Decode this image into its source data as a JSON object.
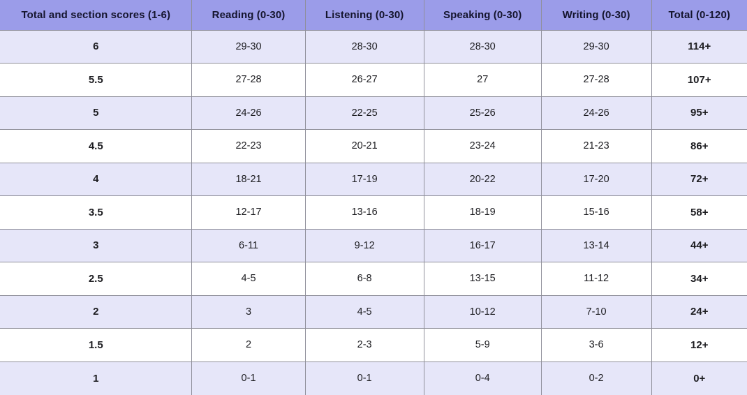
{
  "colors": {
    "header_bg": "#9b9ce9",
    "row_alt_bg": "#e6e6f9",
    "row_bg": "#ffffff",
    "border": "#8f8f9a",
    "header_text": "#15152e",
    "body_text": "#1d1d21"
  },
  "chart_data": {
    "type": "table",
    "columns": [
      "Total and section scores (1-6)",
      "Reading (0-30)",
      "Listening (0-30)",
      "Speaking (0-30)",
      "Writing (0-30)",
      "Total (0-120)"
    ],
    "rows": [
      [
        "6",
        "29-30",
        "28-30",
        "28-30",
        "29-30",
        "114+"
      ],
      [
        "5.5",
        "27-28",
        "26-27",
        "27",
        "27-28",
        "107+"
      ],
      [
        "5",
        "24-26",
        "22-25",
        "25-26",
        "24-26",
        "95+"
      ],
      [
        "4.5",
        "22-23",
        "20-21",
        "23-24",
        "21-23",
        "86+"
      ],
      [
        "4",
        "18-21",
        "17-19",
        "20-22",
        "17-20",
        "72+"
      ],
      [
        "3.5",
        "12-17",
        "13-16",
        "18-19",
        "15-16",
        "58+"
      ],
      [
        "3",
        "6-11",
        "9-12",
        "16-17",
        "13-14",
        "44+"
      ],
      [
        "2.5",
        "4-5",
        "6-8",
        "13-15",
        "11-12",
        "34+"
      ],
      [
        "2",
        "3",
        "4-5",
        "10-12",
        "7-10",
        "24+"
      ],
      [
        "1.5",
        "2",
        "2-3",
        "5-9",
        "3-6",
        "12+"
      ],
      [
        "1",
        "0-1",
        "0-1",
        "0-4",
        "0-2",
        "0+"
      ]
    ]
  }
}
